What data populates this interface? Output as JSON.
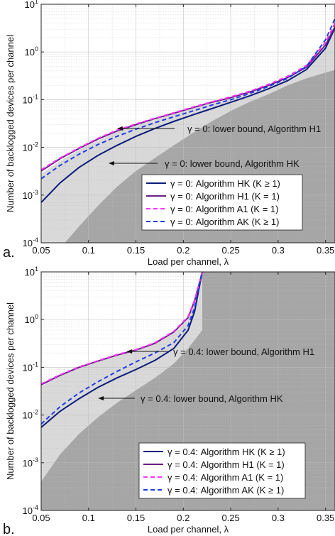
{
  "chart_data": [
    {
      "panel_label": "a.",
      "type": "line",
      "xlabel": "Load per channel,  λ",
      "ylabel": "Number of backlogged devices per channel",
      "xlim": [
        0.05,
        0.36
      ],
      "ylim": [
        0.0001,
        10
      ],
      "yscale": "log",
      "grid": true,
      "legend_position": "bottom-right",
      "x_ticks": [
        "0.05",
        "0.1",
        "0.15",
        "0.2",
        "0.25",
        "0.3",
        "0.35"
      ],
      "y_ticks": [
        "10^-4",
        "10^-3",
        "10^-2",
        "10^-1",
        "10^0",
        "10^1"
      ],
      "series": [
        {
          "name": "γ = 0: Algorithm HK (K ≥ 1)",
          "color": "#0b1b7a",
          "dash": "solid",
          "x": [
            0.05,
            0.07,
            0.09,
            0.11,
            0.13,
            0.15,
            0.17,
            0.19,
            0.21,
            0.23,
            0.25,
            0.27,
            0.29,
            0.31,
            0.33,
            0.35,
            0.36
          ],
          "y": [
            0.0007,
            0.0018,
            0.0038,
            0.0068,
            0.011,
            0.017,
            0.025,
            0.035,
            0.048,
            0.065,
            0.088,
            0.12,
            0.17,
            0.25,
            0.43,
            1.2,
            3.2
          ]
        },
        {
          "name": "γ = 0: Algorithm H1 (K = 1)",
          "color": "#6a1e86",
          "dash": "solid",
          "x": [
            0.05,
            0.07,
            0.09,
            0.11,
            0.13,
            0.15,
            0.17,
            0.19,
            0.21,
            0.23,
            0.25,
            0.27,
            0.29,
            0.31,
            0.33,
            0.35,
            0.36
          ],
          "y": [
            0.0032,
            0.0058,
            0.0095,
            0.015,
            0.022,
            0.03,
            0.04,
            0.052,
            0.068,
            0.088,
            0.11,
            0.145,
            0.2,
            0.29,
            0.48,
            1.4,
            3.4
          ]
        },
        {
          "name": "γ = 0: Algorithm A1 (K = 1)",
          "color": "#ff33ff",
          "dash": "dashed",
          "x": [
            0.05,
            0.07,
            0.09,
            0.11,
            0.13,
            0.15,
            0.17,
            0.19,
            0.21,
            0.23,
            0.25,
            0.27,
            0.29,
            0.31,
            0.33,
            0.35,
            0.36
          ],
          "y": [
            0.0034,
            0.006,
            0.0098,
            0.0155,
            0.023,
            0.031,
            0.041,
            0.053,
            0.07,
            0.09,
            0.115,
            0.15,
            0.21,
            0.31,
            0.52,
            1.6,
            4.0
          ]
        },
        {
          "name": "γ = 0: Algorithm AK (K ≥ 1)",
          "color": "#1f3be6",
          "dash": "dashed",
          "x": [
            0.05,
            0.07,
            0.09,
            0.11,
            0.13,
            0.15,
            0.17,
            0.19,
            0.21,
            0.23,
            0.25,
            0.27,
            0.29,
            0.31,
            0.33,
            0.35,
            0.36
          ],
          "y": [
            0.0022,
            0.0042,
            0.0072,
            0.0115,
            0.017,
            0.024,
            0.033,
            0.044,
            0.058,
            0.077,
            0.1,
            0.135,
            0.19,
            0.28,
            0.5,
            1.8,
            5.0
          ]
        }
      ],
      "regions": [
        {
          "name": "γ = 0: lower bound, Algorithm H1",
          "color": "#d9d9d9",
          "x": [
            0.05,
            0.07,
            0.09,
            0.11,
            0.13,
            0.15,
            0.17,
            0.19,
            0.21,
            0.23,
            0.25,
            0.27,
            0.29,
            0.31,
            0.33,
            0.35,
            0.36
          ],
          "y": [
            0.0028,
            0.0052,
            0.0088,
            0.014,
            0.021,
            0.029,
            0.038,
            0.05,
            0.065,
            0.084,
            0.105,
            0.14,
            0.19,
            0.27,
            0.45,
            1.3,
            3.3
          ]
        },
        {
          "name": "γ = 0: lower bound, Algorithm HK",
          "color": "#a6a6a6",
          "x": [
            0.05,
            0.06,
            0.07,
            0.075,
            0.09,
            0.11,
            0.13,
            0.15,
            0.17,
            0.19,
            0.21,
            0.23,
            0.25,
            0.27,
            0.29,
            0.31,
            0.33,
            0.35,
            0.36
          ],
          "y": [
            0.0001,
            0.0001,
            0.0001,
            0.0001,
            0.00022,
            0.0006,
            0.0015,
            0.0032,
            0.006,
            0.011,
            0.02,
            0.035,
            0.058,
            0.09,
            0.13,
            0.2,
            0.28,
            0.37,
            0.42
          ]
        }
      ],
      "annotations": [
        {
          "text": "γ = 0: lower bound, Algorithm H1",
          "arrow_to": [
            0.13,
            0.021
          ]
        },
        {
          "text": "γ = 0: lower bound, Algorithm HK",
          "arrow_to": [
            0.121,
            0.0045
          ]
        }
      ]
    },
    {
      "panel_label": "b.",
      "type": "line",
      "xlabel": "Load per channel,  λ",
      "ylabel": "Number of backlogged devices per channel",
      "xlim": [
        0.05,
        0.36
      ],
      "ylim": [
        0.0001,
        10
      ],
      "yscale": "log",
      "grid": true,
      "legend_position": "bottom-right",
      "x_ticks": [
        "0.05",
        "0.1",
        "0.15",
        "0.2",
        "0.25",
        "0.3",
        "0.35"
      ],
      "y_ticks": [
        "10^-4",
        "10^-3",
        "10^-2",
        "10^-1",
        "10^0",
        "10^1"
      ],
      "series": [
        {
          "name": "γ = 0.4: Algorithm HK (K ≥ 1)",
          "color": "#0b1b7a",
          "dash": "solid",
          "x": [
            0.05,
            0.07,
            0.09,
            0.11,
            0.13,
            0.15,
            0.17,
            0.19,
            0.205,
            0.212,
            0.216,
            0.22
          ],
          "y": [
            0.0055,
            0.012,
            0.022,
            0.038,
            0.06,
            0.09,
            0.14,
            0.25,
            0.6,
            1.5,
            4.0,
            10
          ]
        },
        {
          "name": "γ = 0.4: Algorithm H1 (K = 1)",
          "color": "#6a1e86",
          "dash": "solid",
          "x": [
            0.05,
            0.07,
            0.09,
            0.11,
            0.13,
            0.15,
            0.17,
            0.19,
            0.205,
            0.212,
            0.216,
            0.22
          ],
          "y": [
            0.043,
            0.068,
            0.1,
            0.135,
            0.18,
            0.23,
            0.32,
            0.55,
            1.1,
            2.5,
            5.0,
            10
          ]
        },
        {
          "name": "γ = 0.4: Algorithm A1 (K = 1)",
          "color": "#ff33ff",
          "dash": "dashed",
          "x": [
            0.05,
            0.07,
            0.09,
            0.11,
            0.13,
            0.15,
            0.17,
            0.19,
            0.205,
            0.212,
            0.216,
            0.22
          ],
          "y": [
            0.045,
            0.07,
            0.102,
            0.138,
            0.185,
            0.235,
            0.33,
            0.57,
            1.15,
            2.6,
            5.2,
            10
          ]
        },
        {
          "name": "γ = 0.4: Algorithm AK (K ≥ 1)",
          "color": "#1f3be6",
          "dash": "dashed",
          "x": [
            0.05,
            0.07,
            0.09,
            0.11,
            0.13,
            0.15,
            0.17,
            0.19,
            0.205,
            0.212,
            0.216,
            0.22
          ],
          "y": [
            0.0065,
            0.015,
            0.029,
            0.05,
            0.082,
            0.13,
            0.2,
            0.33,
            0.75,
            1.8,
            4.5,
            10
          ]
        }
      ],
      "regions": [
        {
          "name": "γ = 0.4: lower bound, Algorithm H1",
          "color": "#d9d9d9",
          "x": [
            0.05,
            0.07,
            0.09,
            0.11,
            0.13,
            0.15,
            0.17,
            0.19,
            0.205,
            0.22,
            0.22,
            0.36
          ],
          "y": [
            0.04,
            0.065,
            0.097,
            0.13,
            0.175,
            0.225,
            0.31,
            0.52,
            1.0,
            10,
            0.6,
            0.6
          ]
        },
        {
          "name": "γ = 0.4: lower bound, Algorithm HK",
          "color": "#a6a6a6",
          "x": [
            0.05,
            0.07,
            0.09,
            0.11,
            0.13,
            0.15,
            0.17,
            0.19,
            0.205,
            0.22,
            0.22,
            0.36
          ],
          "y": [
            0.0004,
            0.0015,
            0.004,
            0.009,
            0.018,
            0.033,
            0.06,
            0.12,
            0.25,
            0.6,
            10,
            10
          ]
        }
      ],
      "annotations": [
        {
          "text": "γ = 0.4: lower bound, Algorithm H1",
          "arrow_to": [
            0.14,
            0.18
          ]
        },
        {
          "text": "γ = 0.4: lower bound, Algorithm HK",
          "arrow_to": [
            0.11,
            0.017
          ]
        }
      ]
    }
  ]
}
